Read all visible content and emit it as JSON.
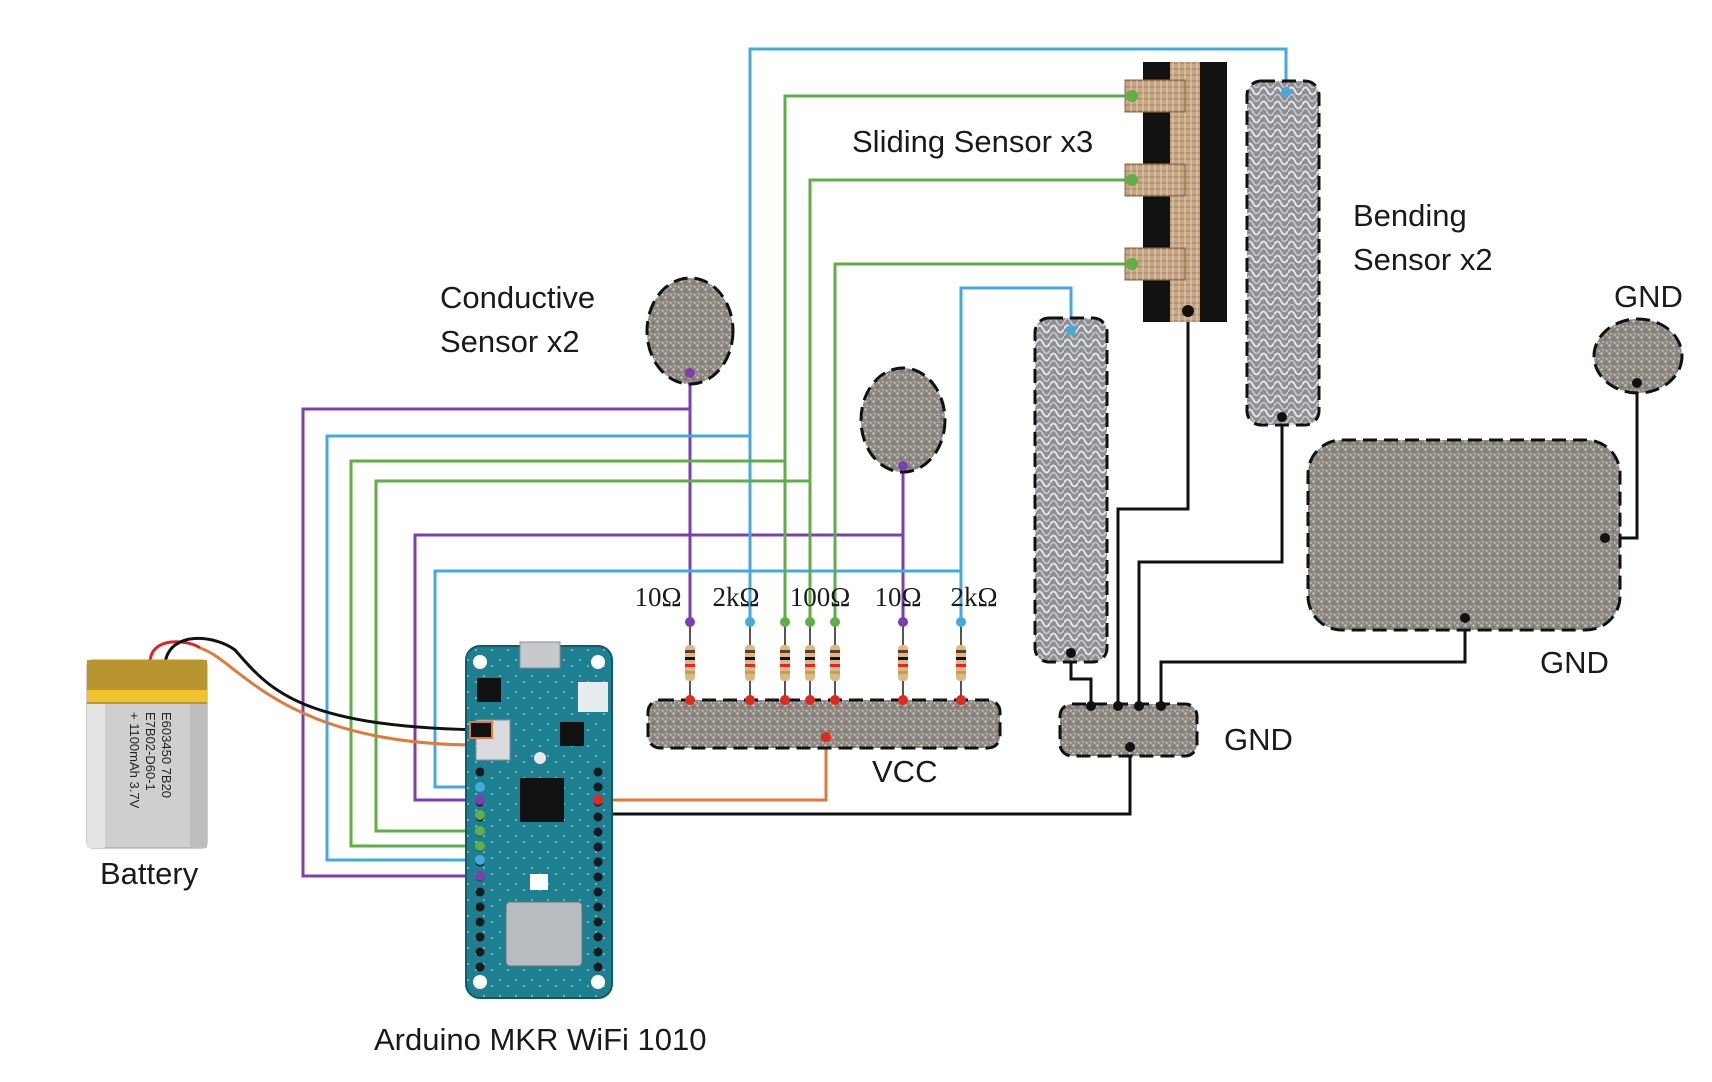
{
  "labels": {
    "conductive_line1": "Conductive",
    "conductive_line2": "Sensor x2",
    "sliding": "Sliding Sensor x3",
    "bending_line1": "Bending",
    "bending_line2": "Sensor x2",
    "vcc": "VCC",
    "gnd_bus": "GND",
    "gnd_pad_small": "GND",
    "gnd_pad_large": "GND",
    "battery": "Battery",
    "board": "Arduino MKR WiFi 1010"
  },
  "battery_print": {
    "line1": "E603450 7B20",
    "line2": "E7B02-D60-1",
    "line3": "+ 1100mAh 3.7V"
  },
  "resistors": [
    "10Ω",
    "2kΩ",
    "100Ω",
    "10Ω",
    "2kΩ"
  ],
  "colors": {
    "purple_wire": "#7b3fb0",
    "blue_wire": "#45a8e0",
    "green_wire": "#5fae46",
    "black_wire": "#111111",
    "orange_wire": "#e07a3a",
    "red_dot": "#e0281e",
    "board_teal": "#1d7f8f"
  },
  "icons": {
    "conductive_pad": "fabric-pad-icon",
    "sliding_sensor": "sliding-sensor-icon",
    "bending_sensor": "knit-strip-icon",
    "battery": "battery-icon",
    "board": "arduino-board-icon",
    "resistor": "resistor-icon"
  }
}
